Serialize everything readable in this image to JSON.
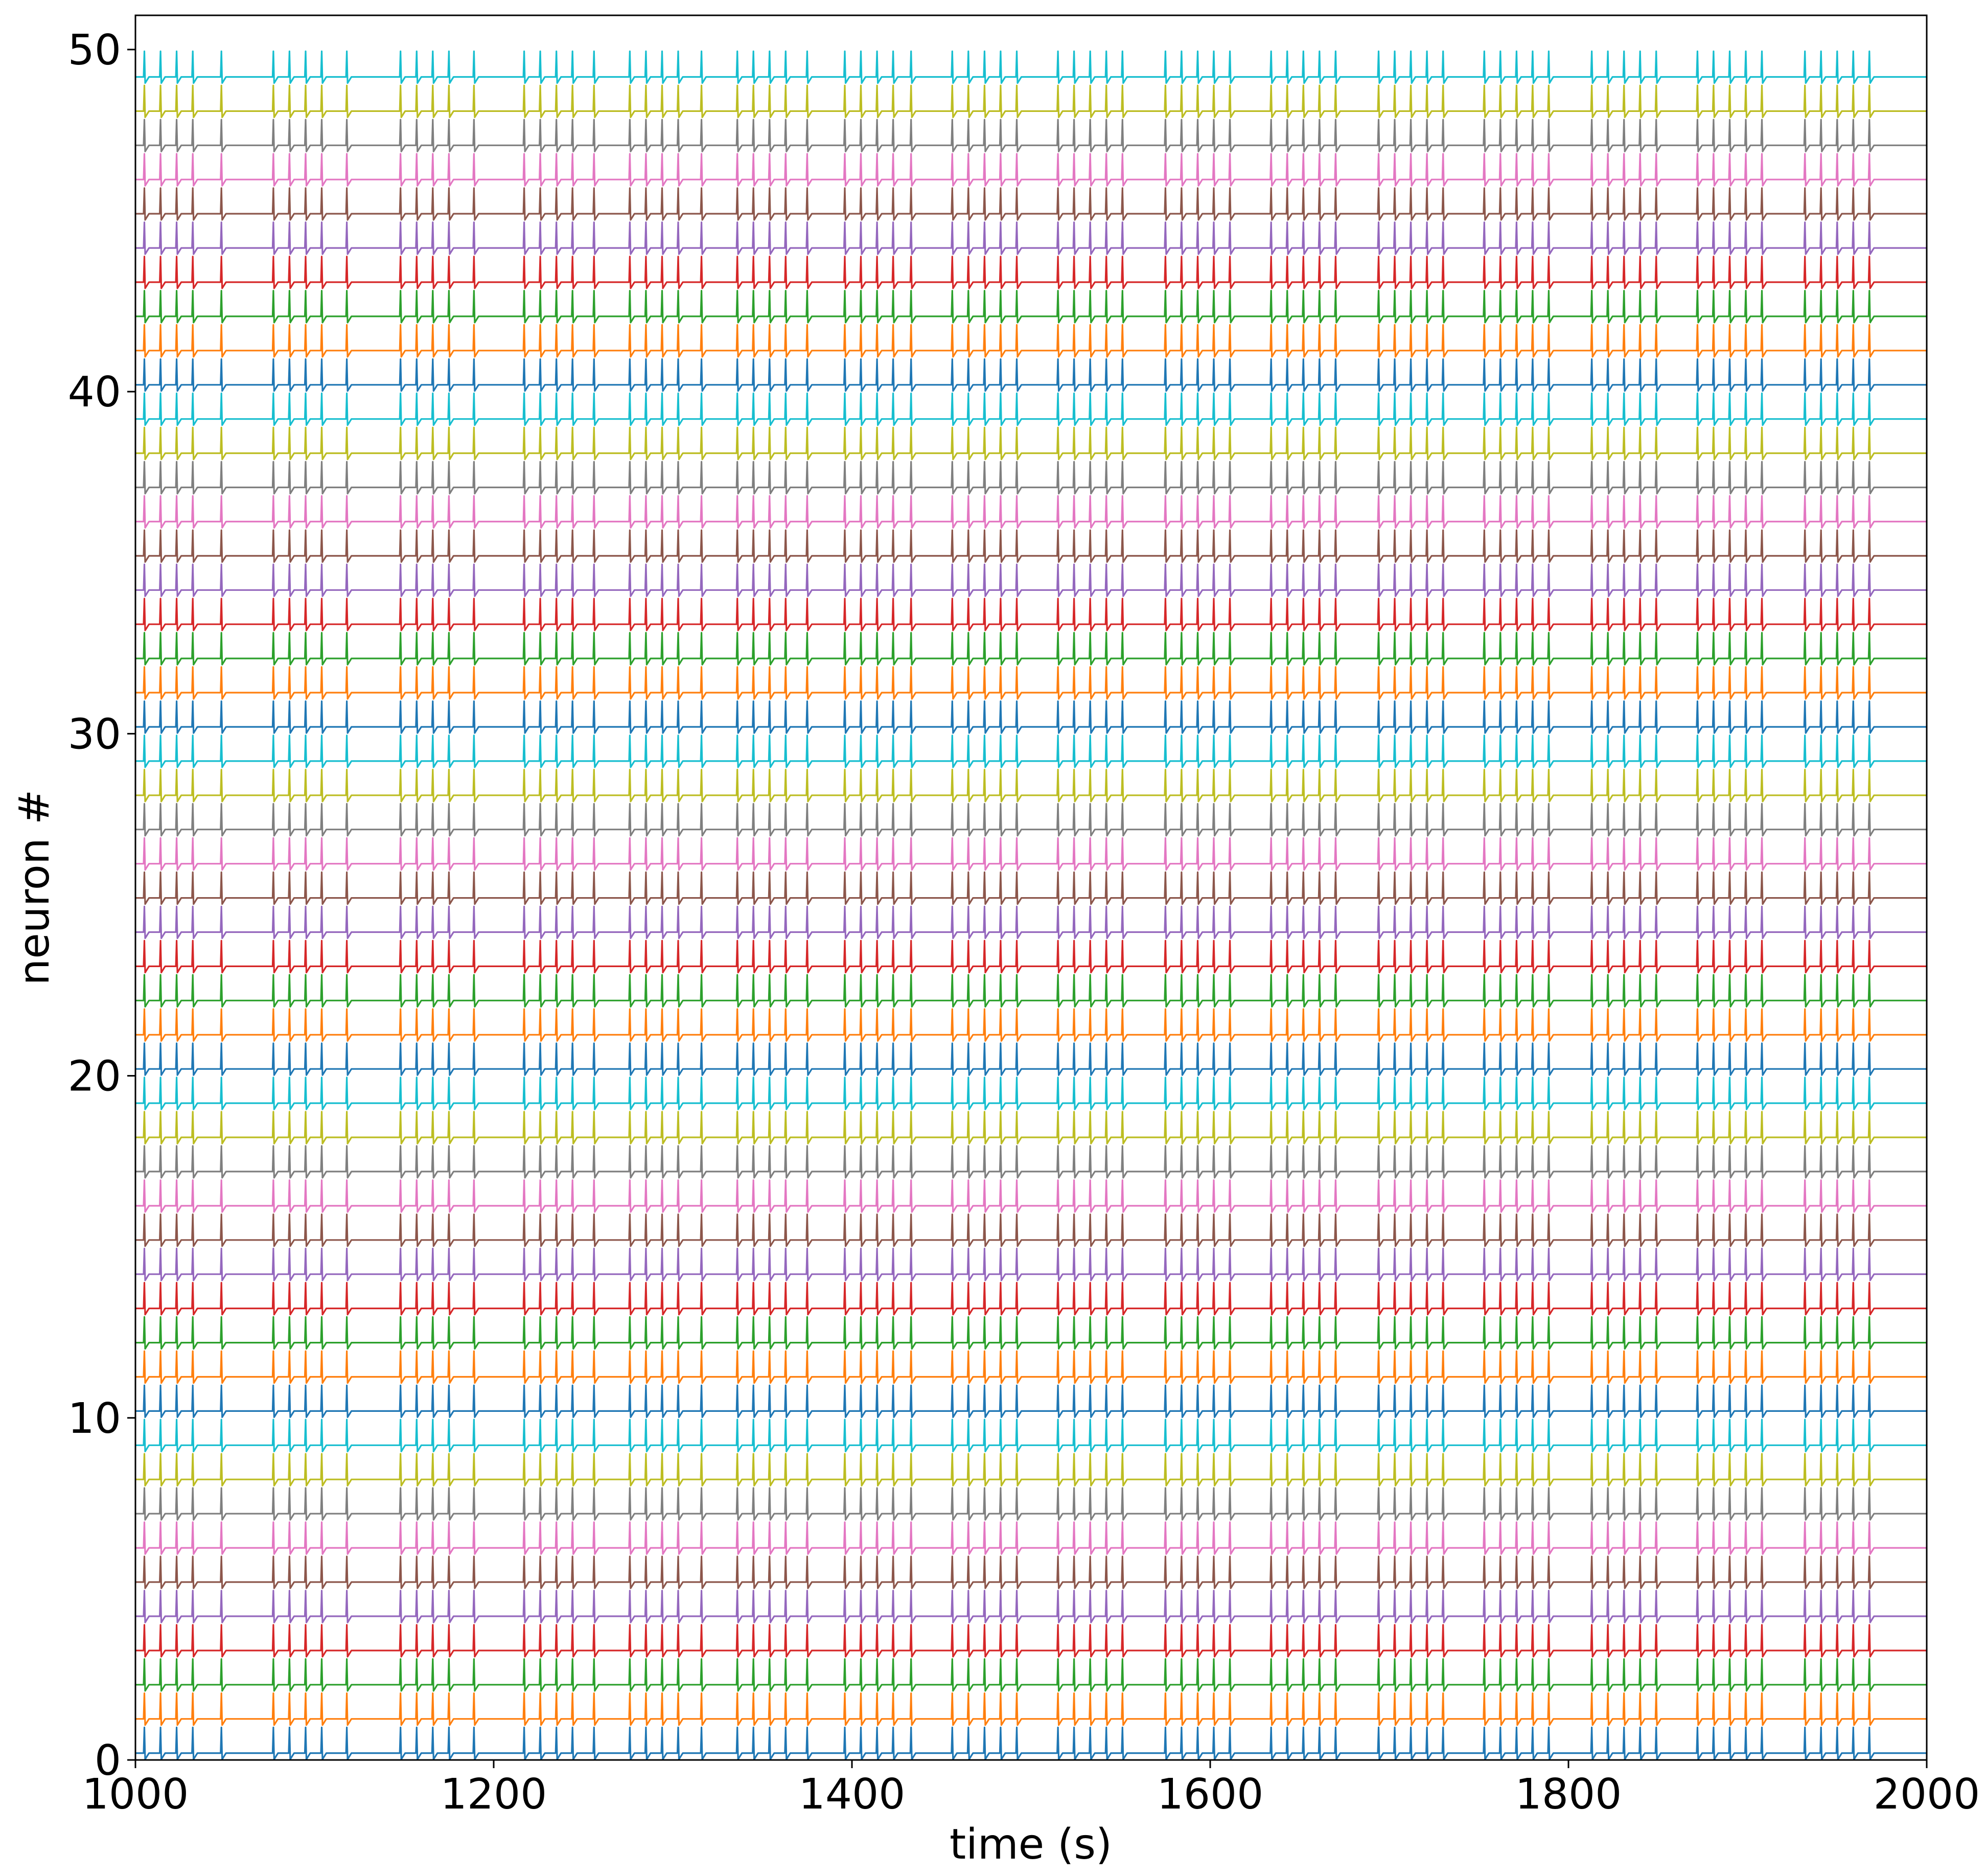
{
  "chart_data": {
    "type": "line",
    "chart_kind": "spike raster (membrane traces stacked per neuron)",
    "title": "",
    "xlabel": "time (s)",
    "ylabel": "neuron #",
    "xlim": [
      1000,
      2000
    ],
    "ylim": [
      0,
      51
    ],
    "xticks": [
      1000,
      1200,
      1400,
      1600,
      1800,
      2000
    ],
    "yticks": [
      0,
      10,
      20,
      30,
      40,
      50
    ],
    "x_tick_labels": [
      "1000",
      "1200",
      "1400",
      "1600",
      "1800",
      "2000"
    ],
    "y_tick_labels": [
      "0",
      "10",
      "20",
      "30",
      "40",
      "50"
    ],
    "grid": false,
    "legend": "none",
    "neuron_count": 50,
    "series_color_cycle": [
      "#1f77b4",
      "#ff7f0e",
      "#2ca02c",
      "#d62728",
      "#9467bd",
      "#8c564b",
      "#e377c2",
      "#7f7f7f",
      "#bcbd22",
      "#17becf"
    ],
    "baseline_offsets": [
      0.2,
      1.2,
      2.2,
      3.2,
      4.2,
      5.2,
      6.2,
      7.2,
      8.2,
      9.2,
      10.2,
      11.2,
      12.2,
      13.2,
      14.2,
      15.2,
      16.2,
      17.2,
      18.2,
      19.2,
      20.2,
      21.2,
      22.2,
      23.2,
      24.2,
      25.2,
      26.2,
      27.2,
      28.2,
      29.2,
      30.2,
      31.2,
      32.2,
      33.2,
      34.2,
      35.2,
      36.2,
      37.2,
      38.2,
      39.2,
      40.2,
      41.2,
      42.2,
      43.2,
      44.2,
      45.2,
      46.2,
      47.2,
      48.2,
      49.2
    ],
    "spike_peak_offset": 0.75,
    "spike_trough_offset": -0.18,
    "bursts": [
      {
        "start": 1005,
        "spikes": [
          1005,
          1014,
          1023,
          1032,
          1048
        ]
      },
      {
        "start": 1077,
        "spikes": [
          1077,
          1086,
          1095,
          1104,
          1118
        ]
      },
      {
        "start": 1148,
        "spikes": [
          1148,
          1157,
          1166,
          1175,
          1189
        ]
      },
      {
        "start": 1217,
        "spikes": [
          1217,
          1226,
          1235,
          1244,
          1256
        ]
      },
      {
        "start": 1276,
        "spikes": [
          1276,
          1285,
          1294,
          1303,
          1316
        ]
      },
      {
        "start": 1336,
        "spikes": [
          1336,
          1345,
          1354,
          1363,
          1375
        ]
      },
      {
        "start": 1396,
        "spikes": [
          1396,
          1405,
          1414,
          1423,
          1433
        ]
      },
      {
        "start": 1456,
        "spikes": [
          1456,
          1465,
          1474,
          1483,
          1492
        ]
      },
      {
        "start": 1515,
        "spikes": [
          1515,
          1524,
          1533,
          1542,
          1551
        ]
      },
      {
        "start": 1575,
        "spikes": [
          1575,
          1584,
          1593,
          1602,
          1611
        ]
      },
      {
        "start": 1634,
        "spikes": [
          1634,
          1643,
          1652,
          1661,
          1670
        ]
      },
      {
        "start": 1694,
        "spikes": [
          1694,
          1703,
          1712,
          1721,
          1730
        ]
      },
      {
        "start": 1753,
        "spikes": [
          1753,
          1762,
          1771,
          1780,
          1789
        ]
      },
      {
        "start": 1813,
        "spikes": [
          1813,
          1822,
          1831,
          1840,
          1849
        ]
      },
      {
        "start": 1872,
        "spikes": [
          1872,
          1881,
          1890,
          1899,
          1908
        ]
      },
      {
        "start": 1932,
        "spikes": [
          1932,
          1941,
          1950,
          1959,
          1968
        ]
      }
    ]
  }
}
